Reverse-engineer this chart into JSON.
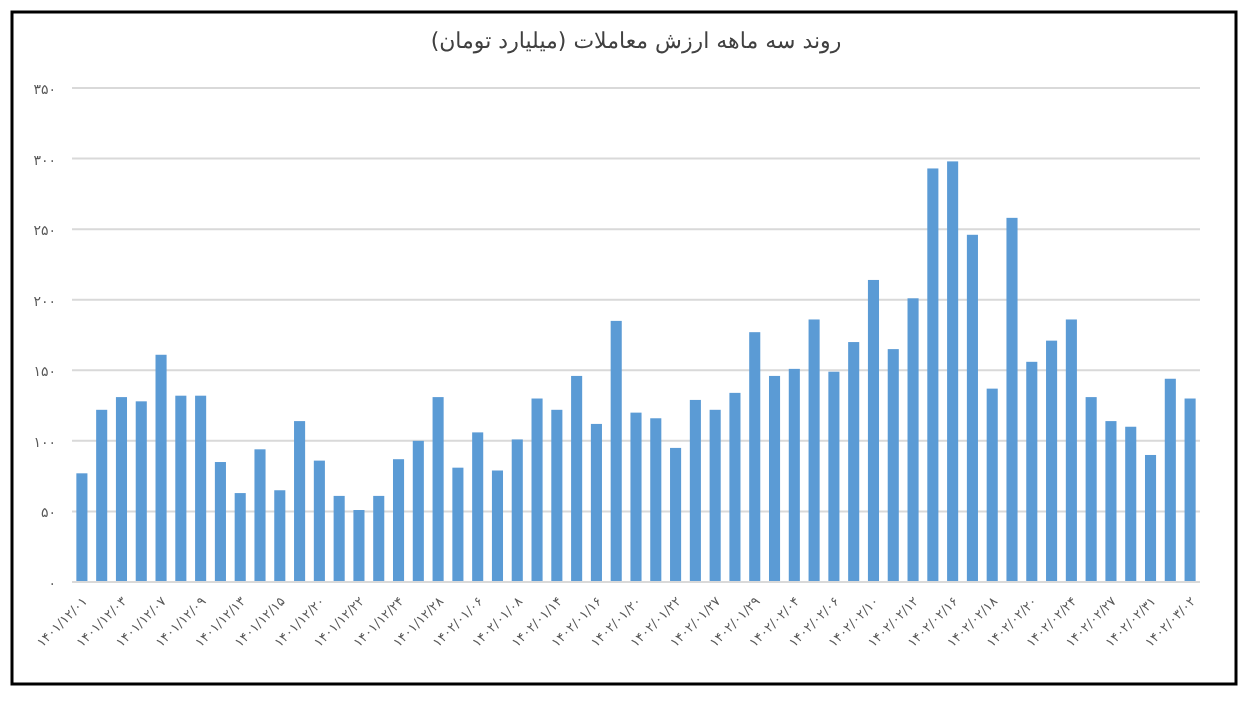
{
  "chart_data": {
    "type": "bar",
    "title": "روند سه ماهه ارزش معاملات (میلیارد تومان)",
    "categories": [
      "۱۴۰۱/۱۲/۰۱",
      null,
      "۱۴۰۱/۱۲/۰۳",
      null,
      "۱۴۰۱/۱۲/۰۷",
      null,
      "۱۴۰۱/۱۲/۰۹",
      null,
      "۱۴۰۱/۱۲/۱۳",
      null,
      "۱۴۰۱/۱۲/۱۵",
      null,
      "۱۴۰۱/۱۲/۲۰",
      null,
      "۱۴۰۱/۱۲/۲۲",
      null,
      "۱۴۰۱/۱۲/۲۴",
      null,
      "۱۴۰۱/۱۲/۲۸",
      null,
      "۱۴۰۲/۰۱/۰۶",
      null,
      "۱۴۰۲/۰۱/۰۸",
      null,
      "۱۴۰۲/۰۱/۱۴",
      null,
      "۱۴۰۲/۰۱/۱۶",
      null,
      "۱۴۰۲/۰۱/۲۰",
      null,
      "۱۴۰۲/۰۱/۲۲",
      null,
      "۱۴۰۲/۰۱/۲۷",
      null,
      "۱۴۰۲/۰۱/۲۹",
      null,
      "۱۴۰۲/۰۲/۰۴",
      null,
      "۱۴۰۲/۰۲/۰۶",
      null,
      "۱۴۰۲/۰۲/۱۰",
      null,
      "۱۴۰۲/۰۲/۱۲",
      null,
      "۱۴۰۲/۰۲/۱۶",
      null,
      "۱۴۰۲/۰۲/۱۸",
      null,
      "۱۴۰۲/۰۲/۲۰",
      null,
      "۱۴۰۲/۰۲/۲۴",
      null,
      "۱۴۰۲/۰۲/۲۷",
      null,
      "۱۴۰۲/۰۲/۳۱",
      null,
      "۱۴۰۲/۰۳/۰۲"
    ],
    "values": [
      77,
      122,
      131,
      128,
      161,
      132,
      132,
      85,
      63,
      94,
      65,
      114,
      86,
      61,
      51,
      61,
      87,
      100,
      131,
      81,
      106,
      79,
      101,
      130,
      122,
      146,
      112,
      185,
      120,
      116,
      95,
      129,
      122,
      134,
      177,
      146,
      151,
      186,
      149,
      170,
      214,
      165,
      201,
      293,
      298,
      246,
      137,
      258,
      156,
      171,
      186,
      131,
      114,
      110,
      90,
      144,
      130
    ],
    "color": "#5b9bd5",
    "ylim": [
      0,
      350
    ],
    "yticks": [
      {
        "value": 0,
        "label": "۰"
      },
      {
        "value": 50,
        "label": "۵۰"
      },
      {
        "value": 100,
        "label": "۱۰۰"
      },
      {
        "value": 150,
        "label": "۱۵۰"
      },
      {
        "value": 200,
        "label": "۲۰۰"
      },
      {
        "value": 250,
        "label": "۲۵۰"
      },
      {
        "value": 300,
        "label": "۳۰۰"
      },
      {
        "value": 350,
        "label": "۳۵۰"
      }
    ],
    "grid": "y"
  }
}
